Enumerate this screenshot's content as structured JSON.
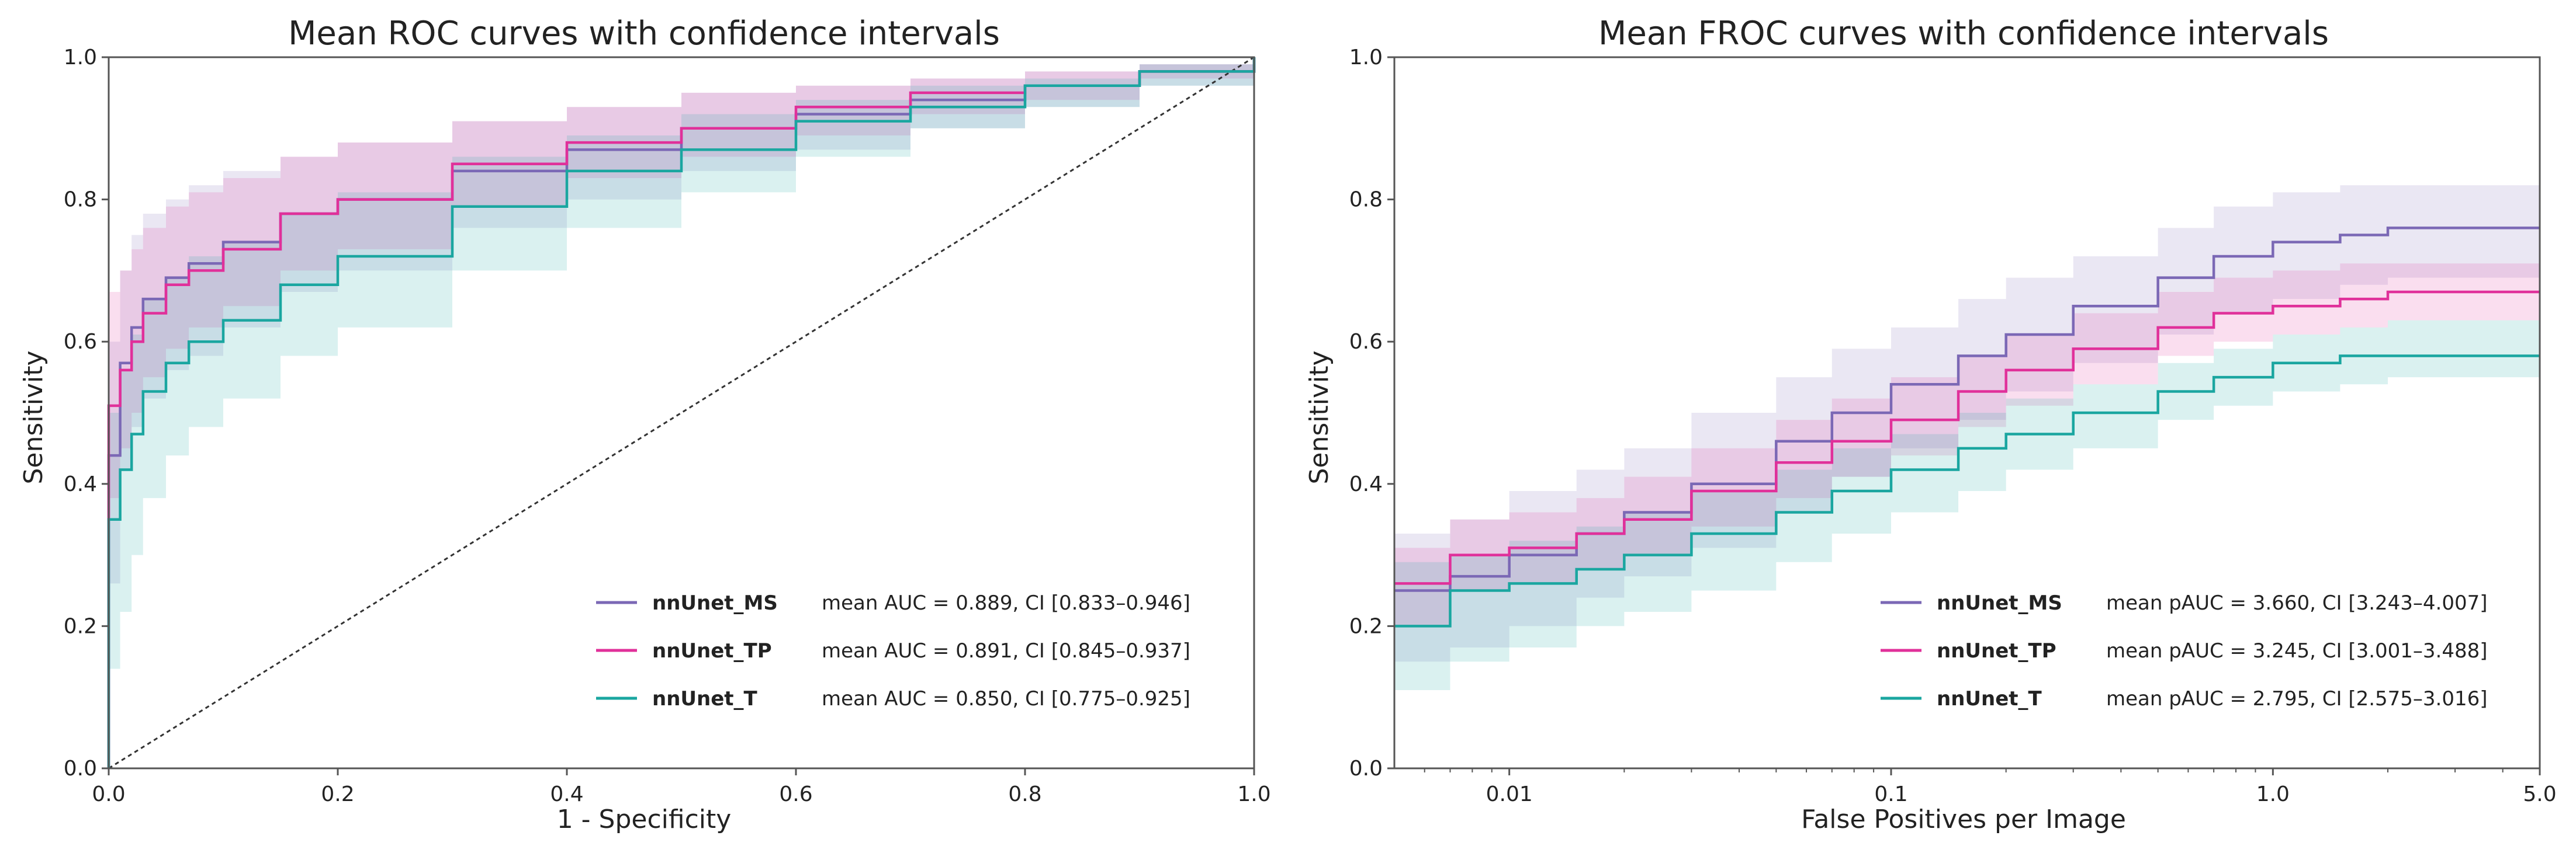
{
  "chart_data": [
    {
      "type": "line",
      "title": "Mean ROC curves with confidence intervals",
      "xlabel": "1 - Specificity",
      "ylabel": "Sensitivity",
      "xlim": [
        0.0,
        1.0
      ],
      "ylim": [
        0.0,
        1.0
      ],
      "xscale": "linear",
      "xticks": [
        0.0,
        0.2,
        0.4,
        0.6,
        0.8,
        1.0
      ],
      "xtick_labels": [
        "0.0",
        "0.2",
        "0.4",
        "0.6",
        "0.8",
        "1.0"
      ],
      "yticks": [
        0.0,
        0.2,
        0.4,
        0.6,
        0.8,
        1.0
      ],
      "ytick_labels": [
        "0.0",
        "0.2",
        "0.4",
        "0.6",
        "0.8",
        "1.0"
      ],
      "legend_position": "bottom-right",
      "diagonal_reference": true,
      "series": [
        {
          "name": "nnUnet_MS",
          "stat": "mean AUC = 0.889, CI [0.833–0.946]",
          "color": "#7b68b5",
          "x": [
            0.0,
            0.0,
            0.01,
            0.02,
            0.03,
            0.05,
            0.07,
            0.1,
            0.15,
            0.2,
            0.3,
            0.4,
            0.5,
            0.6,
            0.7,
            0.8,
            0.9,
            1.0
          ],
          "y": [
            0.0,
            0.44,
            0.57,
            0.62,
            0.66,
            0.69,
            0.71,
            0.74,
            0.78,
            0.8,
            0.84,
            0.87,
            0.9,
            0.92,
            0.94,
            0.96,
            0.98,
            1.0
          ],
          "lower": [
            0.0,
            0.26,
            0.42,
            0.48,
            0.52,
            0.56,
            0.58,
            0.62,
            0.67,
            0.7,
            0.76,
            0.8,
            0.84,
            0.87,
            0.9,
            0.93,
            0.96,
            1.0
          ],
          "upper": [
            0.0,
            0.6,
            0.7,
            0.75,
            0.78,
            0.8,
            0.82,
            0.84,
            0.86,
            0.88,
            0.91,
            0.93,
            0.95,
            0.96,
            0.97,
            0.98,
            0.99,
            1.0
          ]
        },
        {
          "name": "nnUnet_TP",
          "stat": "mean AUC = 0.891, CI [0.845–0.937]",
          "color": "#e0309a",
          "x": [
            0.0,
            0.0,
            0.01,
            0.02,
            0.03,
            0.05,
            0.07,
            0.1,
            0.15,
            0.2,
            0.3,
            0.4,
            0.5,
            0.6,
            0.7,
            0.8,
            0.9,
            1.0
          ],
          "y": [
            0.0,
            0.51,
            0.56,
            0.6,
            0.64,
            0.68,
            0.7,
            0.73,
            0.78,
            0.8,
            0.85,
            0.88,
            0.9,
            0.93,
            0.95,
            0.96,
            0.98,
            1.0
          ],
          "lower": [
            0.0,
            0.38,
            0.45,
            0.5,
            0.55,
            0.59,
            0.62,
            0.65,
            0.7,
            0.73,
            0.79,
            0.83,
            0.86,
            0.89,
            0.92,
            0.94,
            0.97,
            1.0
          ],
          "upper": [
            0.0,
            0.67,
            0.7,
            0.73,
            0.76,
            0.79,
            0.81,
            0.83,
            0.86,
            0.88,
            0.91,
            0.93,
            0.95,
            0.96,
            0.97,
            0.98,
            0.99,
            1.0
          ]
        },
        {
          "name": "nnUnet_T",
          "stat": "mean AUC = 0.850, CI [0.775–0.925]",
          "color": "#1aa6a0",
          "x": [
            0.0,
            0.0,
            0.01,
            0.02,
            0.03,
            0.05,
            0.07,
            0.1,
            0.15,
            0.2,
            0.3,
            0.4,
            0.5,
            0.6,
            0.7,
            0.8,
            0.9,
            1.0
          ],
          "y": [
            0.0,
            0.35,
            0.42,
            0.47,
            0.53,
            0.57,
            0.6,
            0.63,
            0.68,
            0.72,
            0.79,
            0.84,
            0.87,
            0.91,
            0.93,
            0.96,
            0.98,
            1.0
          ],
          "lower": [
            0.0,
            0.14,
            0.22,
            0.3,
            0.38,
            0.44,
            0.48,
            0.52,
            0.58,
            0.62,
            0.7,
            0.76,
            0.81,
            0.86,
            0.9,
            0.93,
            0.96,
            1.0
          ],
          "upper": [
            0.0,
            0.5,
            0.56,
            0.61,
            0.66,
            0.69,
            0.72,
            0.74,
            0.78,
            0.81,
            0.86,
            0.89,
            0.92,
            0.94,
            0.96,
            0.97,
            0.99,
            1.0
          ]
        }
      ]
    },
    {
      "type": "line",
      "title": "Mean FROC curves with confidence intervals",
      "xlabel": "False Positives per Image",
      "ylabel": "Sensitivity",
      "xlim": [
        0.005,
        5.0
      ],
      "ylim": [
        0.0,
        1.0
      ],
      "xscale": "log",
      "xticks": [
        0.01,
        0.1,
        1.0,
        5.0
      ],
      "xtick_labels": [
        "0.01",
        "0.1",
        "1.0",
        "5.0"
      ],
      "yticks": [
        0.0,
        0.2,
        0.4,
        0.6,
        0.8,
        1.0
      ],
      "ytick_labels": [
        "0.0",
        "0.2",
        "0.4",
        "0.6",
        "0.8",
        "1.0"
      ],
      "legend_position": "bottom-right",
      "series": [
        {
          "name": "nnUnet_MS",
          "stat": "mean pAUC = 3.660, CI [3.243–4.007]",
          "color": "#7b68b5",
          "x": [
            0.005,
            0.007,
            0.01,
            0.015,
            0.02,
            0.03,
            0.05,
            0.07,
            0.1,
            0.15,
            0.2,
            0.3,
            0.5,
            0.7,
            1.0,
            1.5,
            2.0,
            3.0,
            5.0
          ],
          "y": [
            0.25,
            0.27,
            0.3,
            0.33,
            0.36,
            0.4,
            0.46,
            0.5,
            0.54,
            0.58,
            0.61,
            0.65,
            0.69,
            0.72,
            0.74,
            0.75,
            0.76,
            0.76,
            0.76
          ],
          "lower": [
            0.15,
            0.17,
            0.2,
            0.24,
            0.27,
            0.31,
            0.36,
            0.41,
            0.45,
            0.49,
            0.53,
            0.57,
            0.61,
            0.64,
            0.66,
            0.68,
            0.69,
            0.69,
            0.69
          ],
          "upper": [
            0.33,
            0.35,
            0.39,
            0.42,
            0.45,
            0.5,
            0.55,
            0.59,
            0.62,
            0.66,
            0.69,
            0.72,
            0.76,
            0.79,
            0.81,
            0.82,
            0.82,
            0.82,
            0.82
          ]
        },
        {
          "name": "nnUnet_TP",
          "stat": "mean pAUC = 3.245, CI [3.001–3.488]",
          "color": "#e0309a",
          "x": [
            0.005,
            0.007,
            0.01,
            0.015,
            0.02,
            0.03,
            0.05,
            0.07,
            0.1,
            0.15,
            0.2,
            0.3,
            0.5,
            0.7,
            1.0,
            1.5,
            2.0,
            3.0,
            5.0
          ],
          "y": [
            0.26,
            0.3,
            0.31,
            0.33,
            0.35,
            0.39,
            0.43,
            0.46,
            0.49,
            0.53,
            0.56,
            0.59,
            0.62,
            0.64,
            0.65,
            0.66,
            0.67,
            0.67,
            0.67
          ],
          "lower": [
            0.2,
            0.25,
            0.26,
            0.28,
            0.3,
            0.34,
            0.38,
            0.41,
            0.44,
            0.48,
            0.51,
            0.54,
            0.58,
            0.6,
            0.61,
            0.62,
            0.63,
            0.63,
            0.63
          ],
          "upper": [
            0.31,
            0.35,
            0.36,
            0.38,
            0.41,
            0.45,
            0.49,
            0.52,
            0.55,
            0.58,
            0.61,
            0.64,
            0.67,
            0.69,
            0.7,
            0.71,
            0.71,
            0.71,
            0.71
          ]
        },
        {
          "name": "nnUnet_T",
          "stat": "mean pAUC = 2.795, CI [2.575–3.016]",
          "color": "#1aa6a0",
          "x": [
            0.005,
            0.007,
            0.01,
            0.015,
            0.02,
            0.03,
            0.05,
            0.07,
            0.1,
            0.15,
            0.2,
            0.3,
            0.5,
            0.7,
            1.0,
            1.5,
            2.0,
            3.0,
            5.0
          ],
          "y": [
            0.2,
            0.25,
            0.26,
            0.28,
            0.3,
            0.33,
            0.36,
            0.39,
            0.42,
            0.45,
            0.47,
            0.5,
            0.53,
            0.55,
            0.57,
            0.58,
            0.58,
            0.58,
            0.58
          ],
          "lower": [
            0.11,
            0.15,
            0.17,
            0.2,
            0.22,
            0.25,
            0.29,
            0.33,
            0.36,
            0.39,
            0.42,
            0.45,
            0.49,
            0.51,
            0.53,
            0.54,
            0.55,
            0.55,
            0.55
          ],
          "upper": [
            0.29,
            0.3,
            0.32,
            0.34,
            0.36,
            0.39,
            0.42,
            0.45,
            0.47,
            0.5,
            0.52,
            0.54,
            0.57,
            0.59,
            0.61,
            0.62,
            0.63,
            0.63,
            0.63
          ]
        }
      ]
    }
  ]
}
